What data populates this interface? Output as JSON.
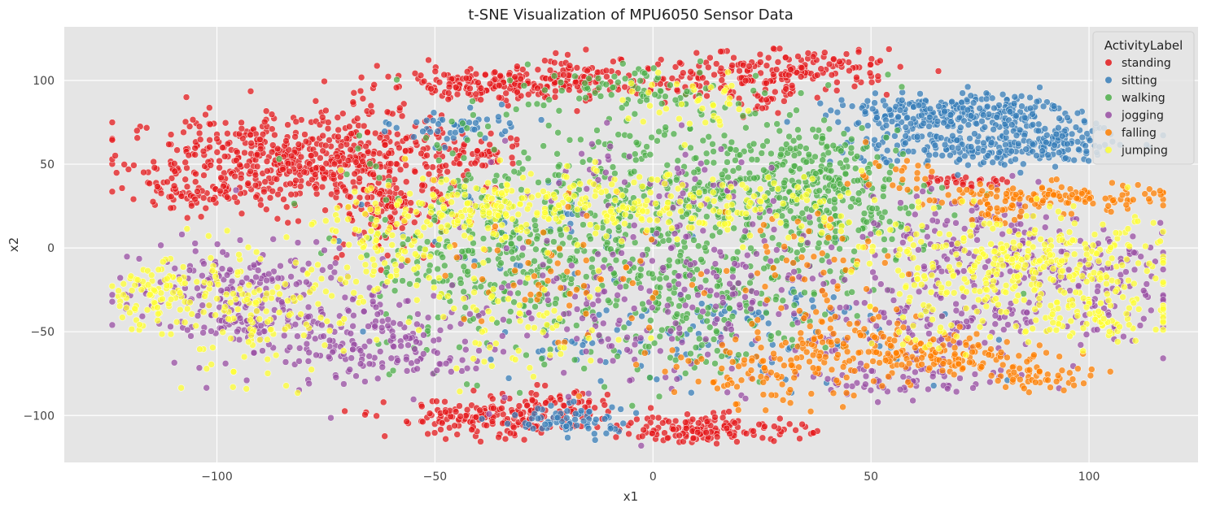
{
  "chart_data": {
    "type": "scatter",
    "title": "t-SNE Visualization of MPU6050 Sensor Data",
    "xlabel": "x1",
    "ylabel": "x2",
    "xlim": [
      -135,
      125
    ],
    "ylim": [
      -128,
      132
    ],
    "xticks": [
      -100,
      -50,
      0,
      50,
      100
    ],
    "yticks": [
      -100,
      -50,
      0,
      50,
      100
    ],
    "xtick_labels": [
      "−100",
      "−50",
      "0",
      "50",
      "100"
    ],
    "ytick_labels": [
      "−100",
      "−50",
      "0",
      "50",
      "100"
    ],
    "grid": true,
    "legend": {
      "title": "ActivityLabel",
      "placement": "top-right"
    },
    "series": [
      {
        "name": "standing",
        "color": "#e41a1c",
        "clusters": [
          {
            "cx": -85,
            "cy": 52,
            "sx": 18,
            "sy": 14,
            "n": 500
          },
          {
            "cx": -62,
            "cy": 48,
            "sx": 9,
            "sy": 18,
            "n": 140
          },
          {
            "cx": -108,
            "cy": 31,
            "sx": 6,
            "sy": 3,
            "n": 40
          },
          {
            "cx": -60,
            "cy": 20,
            "sx": 7,
            "sy": 10,
            "n": 80
          },
          {
            "cx": -38,
            "cy": 98,
            "sx": 12,
            "sy": 5,
            "n": 150
          },
          {
            "cx": -18,
            "cy": 102,
            "sx": 8,
            "sy": 6,
            "n": 90
          },
          {
            "cx": 6,
            "cy": 96,
            "sx": 8,
            "sy": 4,
            "n": 40
          },
          {
            "cx": 30,
            "cy": 106,
            "sx": 13,
            "sy": 6,
            "n": 170
          },
          {
            "cx": 27,
            "cy": 88,
            "sx": 3,
            "sy": 5,
            "n": 25
          },
          {
            "cx": -38,
            "cy": -102,
            "sx": 11,
            "sy": 6,
            "n": 160
          },
          {
            "cx": -22,
            "cy": -96,
            "sx": 6,
            "sy": 6,
            "n": 60
          },
          {
            "cx": 13,
            "cy": -108,
            "sx": 11,
            "sy": 4,
            "n": 150
          },
          {
            "cx": 72,
            "cy": 40,
            "sx": 5,
            "sy": 2,
            "n": 30
          },
          {
            "cx": -40,
            "cy": 55,
            "sx": 6,
            "sy": 4,
            "n": 40
          }
        ]
      },
      {
        "name": "sitting",
        "color": "#377eb8",
        "clusters": [
          {
            "cx": 62,
            "cy": 80,
            "sx": 10,
            "sy": 5,
            "n": 160
          },
          {
            "cx": 80,
            "cy": 82,
            "sx": 7,
            "sy": 6,
            "n": 120
          },
          {
            "cx": 75,
            "cy": 60,
            "sx": 15,
            "sy": 6,
            "n": 220
          },
          {
            "cx": 94,
            "cy": 66,
            "sx": 4,
            "sy": 5,
            "n": 60
          },
          {
            "cx": -45,
            "cy": 72,
            "sx": 7,
            "sy": 5,
            "n": 50
          },
          {
            "cx": -20,
            "cy": -103,
            "sx": 8,
            "sy": 5,
            "n": 70
          },
          {
            "cx": 0,
            "cy": -55,
            "sx": 22,
            "sy": 14,
            "n": 70
          },
          {
            "cx": 35,
            "cy": -45,
            "sx": 20,
            "sy": 15,
            "n": 60
          },
          {
            "cx": -30,
            "cy": 10,
            "sx": 15,
            "sy": 15,
            "n": 40
          }
        ]
      },
      {
        "name": "walking",
        "color": "#4daf4a",
        "clusters": [
          {
            "cx": 0,
            "cy": 20,
            "sx": 28,
            "sy": 35,
            "n": 650
          },
          {
            "cx": 32,
            "cy": 40,
            "sx": 12,
            "sy": 15,
            "n": 220
          },
          {
            "cx": -35,
            "cy": -10,
            "sx": 15,
            "sy": 30,
            "n": 220
          },
          {
            "cx": 10,
            "cy": -40,
            "sx": 14,
            "sy": 18,
            "n": 120
          },
          {
            "cx": -5,
            "cy": 95,
            "sx": 10,
            "sy": 6,
            "n": 60
          },
          {
            "cx": 42,
            "cy": 20,
            "sx": 8,
            "sy": 15,
            "n": 90
          }
        ]
      },
      {
        "name": "jogging",
        "color": "#984ea3",
        "clusters": [
          {
            "cx": -100,
            "cy": -30,
            "sx": 12,
            "sy": 18,
            "n": 180
          },
          {
            "cx": -75,
            "cy": -40,
            "sx": 12,
            "sy": 20,
            "n": 160
          },
          {
            "cx": -60,
            "cy": -60,
            "sx": 8,
            "sy": 10,
            "n": 80
          },
          {
            "cx": -15,
            "cy": -40,
            "sx": 20,
            "sy": 25,
            "n": 120
          },
          {
            "cx": 15,
            "cy": -20,
            "sx": 15,
            "sy": 25,
            "n": 120
          },
          {
            "cx": 95,
            "cy": -20,
            "sx": 16,
            "sy": 18,
            "n": 180
          },
          {
            "cx": 65,
            "cy": -40,
            "sx": 18,
            "sy": 15,
            "n": 160
          },
          {
            "cx": 55,
            "cy": -80,
            "sx": 14,
            "sy": 5,
            "n": 70
          },
          {
            "cx": 70,
            "cy": 10,
            "sx": 12,
            "sy": 14,
            "n": 90
          },
          {
            "cx": 0,
            "cy": 40,
            "sx": 15,
            "sy": 15,
            "n": 60
          }
        ]
      },
      {
        "name": "falling",
        "color": "#ff7f00",
        "clusters": [
          {
            "cx": 90,
            "cy": 30,
            "sx": 14,
            "sy": 4,
            "n": 130
          },
          {
            "cx": 79,
            "cy": 22,
            "sx": 3,
            "sy": 3,
            "n": 25
          },
          {
            "cx": 30,
            "cy": -75,
            "sx": 12,
            "sy": 10,
            "n": 110
          },
          {
            "cx": 70,
            "cy": -65,
            "sx": 12,
            "sy": 5,
            "n": 110
          },
          {
            "cx": 90,
            "cy": -78,
            "sx": 6,
            "sy": 3,
            "n": 40
          },
          {
            "cx": 50,
            "cy": -55,
            "sx": 12,
            "sy": 10,
            "n": 90
          },
          {
            "cx": -20,
            "cy": -15,
            "sx": 15,
            "sy": 25,
            "n": 70
          },
          {
            "cx": 35,
            "cy": -10,
            "sx": 10,
            "sy": 20,
            "n": 60
          },
          {
            "cx": 55,
            "cy": 45,
            "sx": 5,
            "sy": 6,
            "n": 20
          }
        ]
      },
      {
        "name": "jumping",
        "color": "#ffff33",
        "clusters": [
          {
            "cx": -115,
            "cy": -28,
            "sx": 6,
            "sy": 10,
            "n": 90
          },
          {
            "cx": -92,
            "cy": -40,
            "sx": 10,
            "sy": 18,
            "n": 130
          },
          {
            "cx": -60,
            "cy": -5,
            "sx": 10,
            "sy": 15,
            "n": 90
          },
          {
            "cx": -40,
            "cy": 25,
            "sx": 15,
            "sy": 10,
            "n": 140
          },
          {
            "cx": -10,
            "cy": 25,
            "sx": 18,
            "sy": 10,
            "n": 120
          },
          {
            "cx": 20,
            "cy": 25,
            "sx": 15,
            "sy": 10,
            "n": 90
          },
          {
            "cx": 92,
            "cy": -10,
            "sx": 14,
            "sy": 14,
            "n": 220
          },
          {
            "cx": 70,
            "cy": -20,
            "sx": 12,
            "sy": 20,
            "n": 140
          },
          {
            "cx": 105,
            "cy": -40,
            "sx": 10,
            "sy": 8,
            "n": 80
          },
          {
            "cx": -30,
            "cy": -50,
            "sx": 12,
            "sy": 15,
            "n": 60
          },
          {
            "cx": 10,
            "cy": 85,
            "sx": 8,
            "sy": 8,
            "n": 40
          }
        ]
      }
    ]
  }
}
